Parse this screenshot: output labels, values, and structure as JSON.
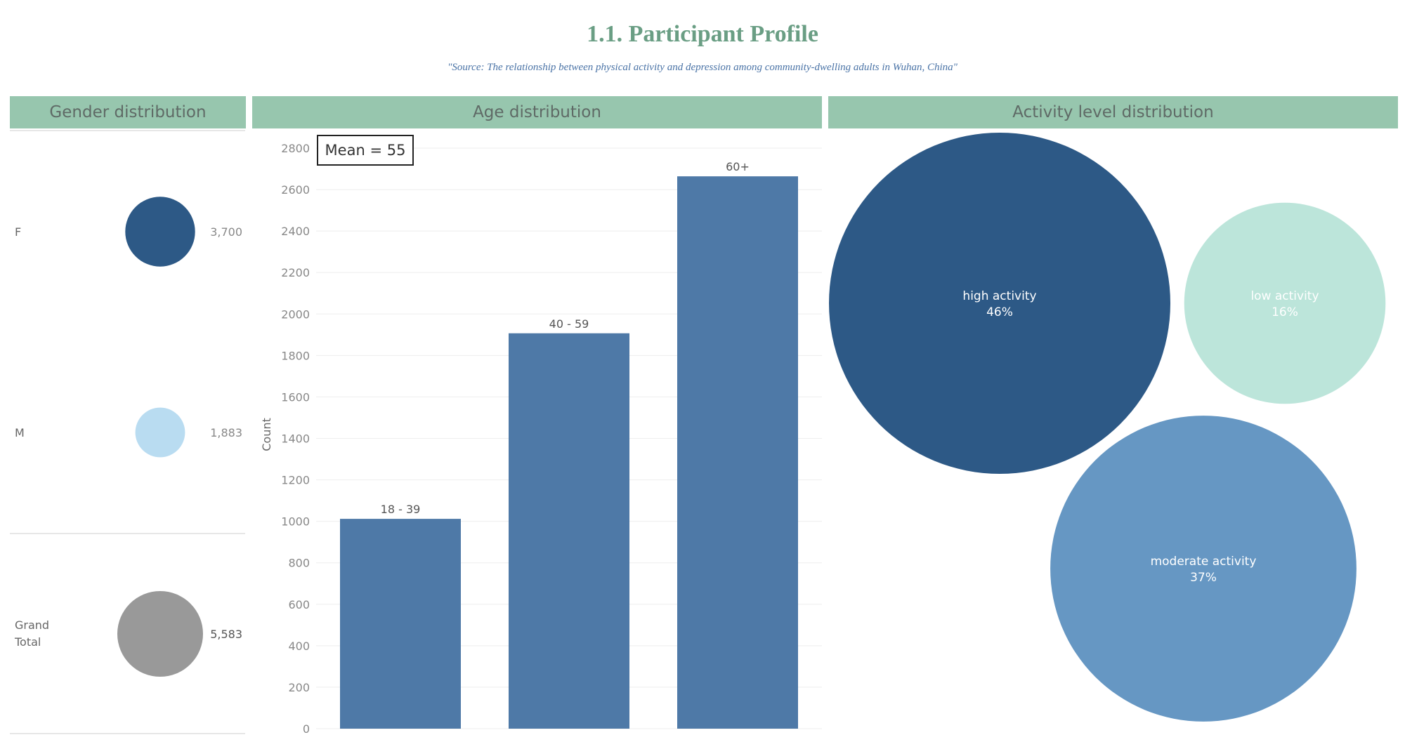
{
  "header": {
    "title": "1.1. Participant Profile",
    "subtitle": "\"Source: The relationship between physical activity and depression among community-dwelling adults in Wuhan, China\""
  },
  "panels": {
    "gender": "Gender distribution",
    "age": "Age distribution",
    "activity": "Activity level distribution"
  },
  "colors": {
    "header_bg": "#97c6ae",
    "title": "#6a9e84",
    "bar": "#4e79a7",
    "gender_F": "#2d5986",
    "gender_M": "#b9dcf1",
    "grand_total": "#999999",
    "high": "#2d5986",
    "low": "#bce5da",
    "moderate": "#6697c3"
  },
  "chart_data": [
    {
      "type": "scatter",
      "title": "Gender distribution",
      "rows": [
        {
          "label": "F",
          "value": 3700,
          "value_label": "3,700",
          "color": "#2d5986"
        },
        {
          "label": "M",
          "value": 1883,
          "value_label": "1,883",
          "color": "#b9dcf1"
        },
        {
          "label": "Grand Total",
          "label_lines": [
            "Grand",
            "Total"
          ],
          "value": 5583,
          "value_label": "5,583",
          "color": "#999999"
        }
      ]
    },
    {
      "type": "bar",
      "title": "Age distribution",
      "categories": [
        "18 - 39",
        "40 - 59",
        "60+"
      ],
      "values": [
        1012,
        1907,
        2664
      ],
      "ylabel": "Count",
      "ylim": [
        0,
        2800
      ],
      "yticks": [
        0,
        200,
        400,
        600,
        800,
        1000,
        1200,
        1400,
        1600,
        1800,
        2000,
        2200,
        2400,
        2600,
        2800
      ],
      "annotation": "Mean = 55",
      "grid": true
    },
    {
      "type": "pie",
      "title": "Activity level distribution",
      "slices": [
        {
          "label": "high activity",
          "percent": 46,
          "percent_label": "46%",
          "color": "#2d5986",
          "text_color": "#ffffff"
        },
        {
          "label": "low activity",
          "percent": 16,
          "percent_label": "16%",
          "color": "#bce5da",
          "text_color": "#ffffff"
        },
        {
          "label": "moderate activity",
          "percent": 37,
          "percent_label": "37%",
          "color": "#6697c3",
          "text_color": "#ffffff"
        }
      ]
    }
  ]
}
